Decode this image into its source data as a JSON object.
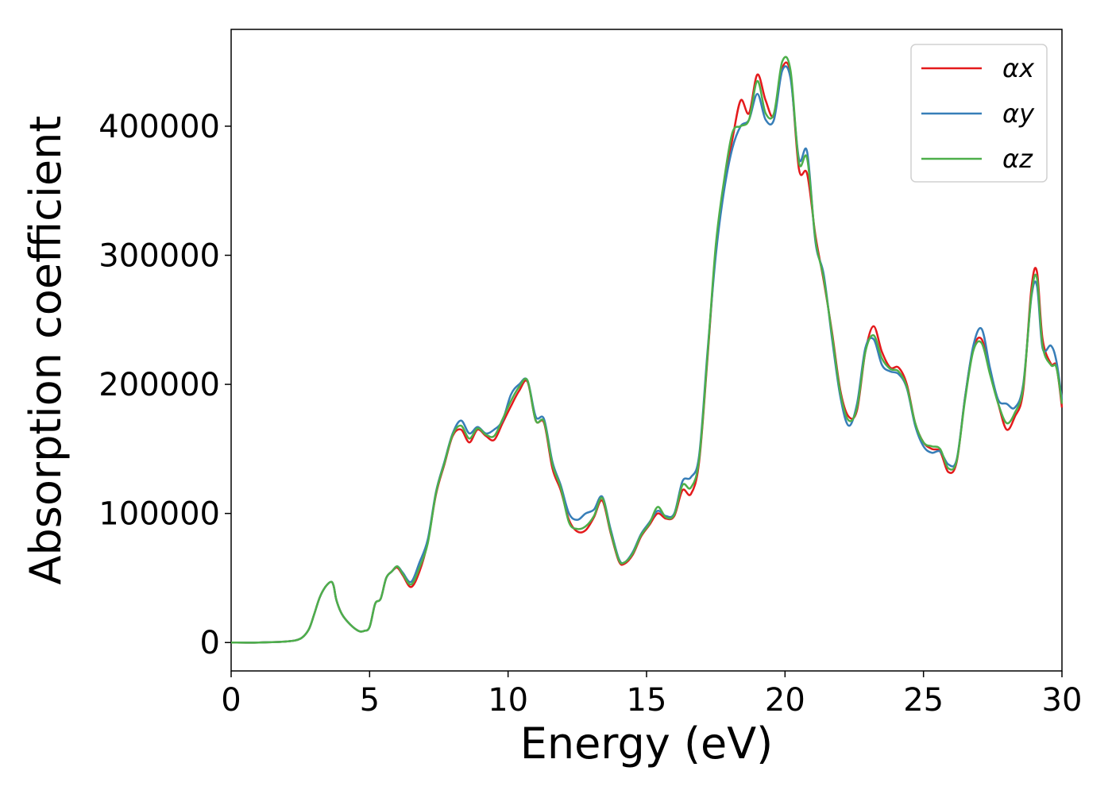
{
  "chart_data": {
    "type": "line",
    "title": "",
    "xlabel": "Energy (eV)",
    "ylabel": "Absorption coefficient",
    "xlim": [
      0,
      30
    ],
    "ylim": [
      -22000,
      475000
    ],
    "xticks": [
      0,
      5,
      10,
      15,
      20,
      25,
      30
    ],
    "yticks": [
      0,
      100000,
      200000,
      300000,
      400000
    ],
    "grid": false,
    "legend_position": "top-right",
    "x": [
      0,
      1,
      2,
      2.5,
      2.8,
      3.0,
      3.2,
      3.4,
      3.6,
      3.7,
      3.8,
      4.0,
      4.3,
      4.6,
      4.8,
      5.0,
      5.2,
      5.4,
      5.6,
      5.8,
      6.0,
      6.2,
      6.5,
      6.8,
      7.1,
      7.4,
      7.7,
      8.0,
      8.3,
      8.6,
      8.9,
      9.2,
      9.5,
      9.8,
      10.1,
      10.4,
      10.7,
      11.0,
      11.3,
      11.6,
      11.9,
      12.2,
      12.5,
      12.8,
      13.1,
      13.4,
      13.7,
      14.0,
      14.2,
      14.5,
      14.8,
      15.1,
      15.4,
      15.7,
      16.0,
      16.3,
      16.6,
      16.9,
      17.2,
      17.5,
      17.8,
      18.1,
      18.4,
      18.7,
      19.0,
      19.3,
      19.6,
      19.9,
      20.2,
      20.5,
      20.8,
      21.1,
      21.4,
      21.7,
      22.0,
      22.3,
      22.6,
      22.9,
      23.2,
      23.5,
      23.8,
      24.1,
      24.4,
      24.7,
      25.0,
      25.3,
      25.6,
      25.9,
      26.2,
      26.5,
      26.8,
      27.1,
      27.4,
      27.7,
      28.0,
      28.3,
      28.6,
      28.9,
      29.1,
      29.3,
      29.6,
      29.8,
      30.0
    ],
    "series": [
      {
        "name": "αx",
        "color": "#e41a1c",
        "values": [
          0,
          0,
          800,
          3000,
          10000,
          22000,
          35000,
          43000,
          47000,
          44000,
          33000,
          22000,
          14000,
          9000,
          9000,
          12000,
          30000,
          34000,
          50000,
          55000,
          58000,
          52000,
          43000,
          55000,
          78000,
          115000,
          138000,
          160000,
          165000,
          155000,
          165000,
          160000,
          157000,
          170000,
          183000,
          195000,
          202000,
          172000,
          170000,
          135000,
          118000,
          95000,
          86000,
          87000,
          97000,
          110000,
          85000,
          63000,
          61000,
          68000,
          82000,
          91000,
          100000,
          96000,
          98000,
          118000,
          115000,
          140000,
          220000,
          305000,
          355000,
          390000,
          420000,
          410000,
          440000,
          420000,
          408000,
          445000,
          440000,
          367000,
          363000,
          315000,
          280000,
          240000,
          195000,
          175000,
          180000,
          225000,
          245000,
          225000,
          213000,
          213000,
          200000,
          170000,
          155000,
          150000,
          148000,
          132000,
          140000,
          190000,
          228000,
          235000,
          210000,
          185000,
          165000,
          175000,
          195000,
          275000,
          287000,
          235000,
          216000,
          214000,
          182000
        ]
      },
      {
        "name": "αy",
        "color": "#377eb8",
        "values": [
          0,
          0,
          800,
          3000,
          10000,
          22000,
          35000,
          43000,
          47000,
          44000,
          33000,
          22000,
          14000,
          9000,
          9000,
          12000,
          30000,
          34000,
          50000,
          55000,
          59000,
          54000,
          47000,
          62000,
          80000,
          117000,
          140000,
          162000,
          172000,
          162000,
          167000,
          162000,
          165000,
          172000,
          192000,
          200000,
          203000,
          175000,
          173000,
          140000,
          122000,
          100000,
          95000,
          100000,
          103000,
          113000,
          88000,
          65000,
          62000,
          70000,
          84000,
          93000,
          102000,
          98000,
          100000,
          125000,
          128000,
          145000,
          225000,
          300000,
          350000,
          383000,
          400000,
          405000,
          425000,
          405000,
          405000,
          443000,
          437000,
          375000,
          380000,
          310000,
          285000,
          235000,
          190000,
          168000,
          185000,
          228000,
          235000,
          215000,
          210000,
          208000,
          197000,
          168000,
          152000,
          147000,
          148000,
          138000,
          142000,
          190000,
          230000,
          243000,
          213000,
          188000,
          185000,
          182000,
          200000,
          268000,
          276000,
          228000,
          230000,
          218000,
          188000
        ]
      },
      {
        "name": "αz",
        "color": "#4daf4a",
        "values": [
          0,
          0,
          800,
          3000,
          10000,
          22000,
          35000,
          43000,
          47000,
          44000,
          33000,
          22000,
          14000,
          9000,
          9000,
          12000,
          30000,
          34000,
          50000,
          55000,
          59000,
          53000,
          45000,
          58000,
          77000,
          116000,
          139000,
          161000,
          168000,
          158000,
          166000,
          161000,
          160000,
          173000,
          187000,
          198000,
          203000,
          172000,
          171000,
          138000,
          120000,
          93000,
          88000,
          90000,
          98000,
          112000,
          86000,
          64000,
          62000,
          69000,
          83000,
          92000,
          105000,
          97000,
          99000,
          122000,
          120000,
          142000,
          222000,
          308000,
          358000,
          395000,
          400000,
          405000,
          435000,
          410000,
          410000,
          450000,
          443000,
          372000,
          375000,
          312000,
          282000,
          238000,
          193000,
          172000,
          182000,
          225000,
          238000,
          220000,
          212000,
          210000,
          198000,
          170000,
          155000,
          152000,
          150000,
          135000,
          141000,
          188000,
          226000,
          232000,
          208000,
          185000,
          170000,
          178000,
          198000,
          270000,
          282000,
          230000,
          215000,
          213000,
          185000
        ]
      }
    ]
  }
}
